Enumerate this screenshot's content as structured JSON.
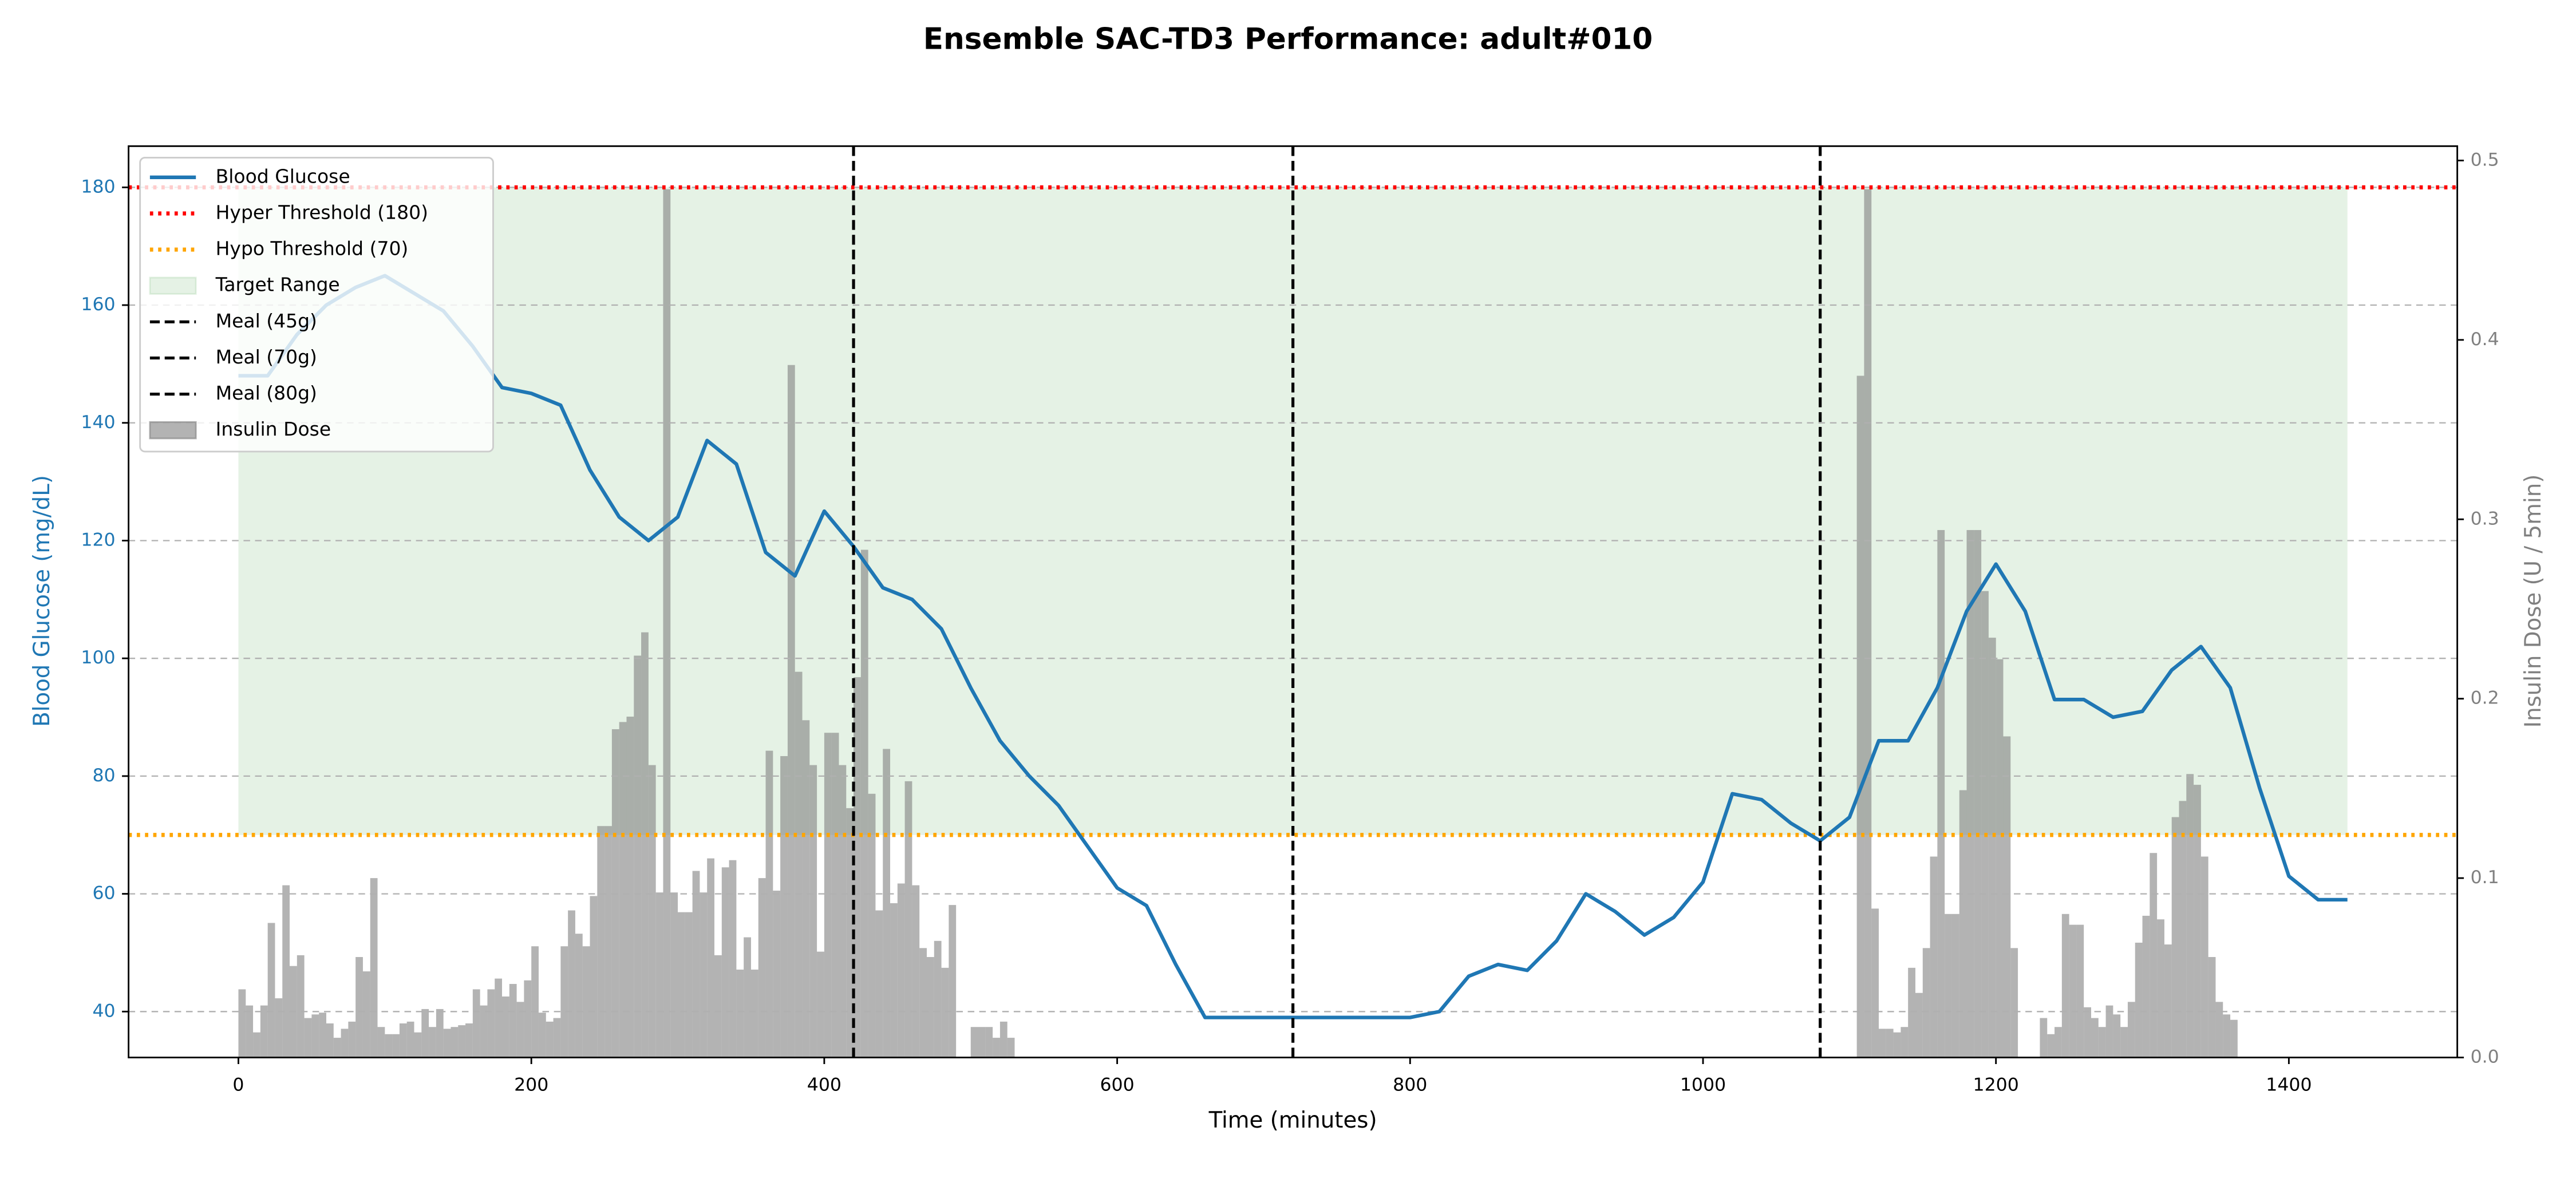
{
  "chart_data": {
    "type": "line",
    "title": "Ensemble SAC-TD3 Performance: adult#010",
    "x_label": "Time (minutes)",
    "y_label": "Blood Glucose (mg/dL)",
    "y2_label": "Insulin Dose (U / 5min)",
    "xlim": [
      -75,
      1515
    ],
    "xticks": [
      0,
      200,
      400,
      600,
      800,
      1000,
      1200,
      1400
    ],
    "ylim": [
      32.2,
      187
    ],
    "yticks": [
      40,
      60,
      80,
      100,
      120,
      140,
      160,
      180
    ],
    "y2lim": [
      0,
      0.508
    ],
    "y2ticks": [
      {
        "value": 0,
        "label": "0.0"
      },
      0.1,
      0.2,
      0.3,
      0.4,
      0.5
    ],
    "grid": "y",
    "legend": "upper left",
    "series": [
      {
        "name": "Blood Glucose",
        "type": "line",
        "color": "#1f77b4",
        "x": [
          0,
          20,
          40,
          60,
          80,
          100,
          120,
          140,
          160,
          180,
          200,
          220,
          240,
          260,
          280,
          300,
          320,
          340,
          360,
          380,
          400,
          420,
          440,
          460,
          480,
          500,
          520,
          540,
          560,
          580,
          600,
          620,
          640,
          660,
          680,
          700,
          720,
          740,
          760,
          780,
          800,
          820,
          840,
          860,
          880,
          900,
          920,
          940,
          960,
          980,
          1000,
          1020,
          1040,
          1060,
          1080,
          1100,
          1120,
          1140,
          1160,
          1180,
          1200,
          1220,
          1240,
          1260,
          1280,
          1300,
          1320,
          1340,
          1360,
          1380,
          1400,
          1420,
          1440
        ],
        "values": [
          148,
          148,
          155,
          160,
          163,
          165,
          162,
          159,
          153,
          146,
          145,
          143,
          132,
          124,
          120,
          124,
          137,
          133,
          118,
          114,
          125,
          119,
          112,
          110,
          105,
          95,
          86,
          80,
          75,
          68,
          61,
          58,
          48,
          39,
          39,
          39,
          39,
          39,
          39,
          39,
          39,
          40,
          46,
          48,
          47,
          52,
          60,
          57,
          53,
          56,
          62,
          77,
          76,
          72,
          69,
          73,
          86,
          86,
          95,
          108,
          116,
          108,
          93,
          93,
          90,
          91,
          98,
          102,
          95,
          78,
          63,
          59,
          59
        ]
      },
      {
        "name": "Insulin Dose",
        "type": "bar",
        "color": "gray",
        "alpha": 0.6,
        "axis": "y2",
        "x": [
          0,
          5,
          10,
          15,
          20,
          25,
          30,
          35,
          40,
          45,
          50,
          55,
          60,
          65,
          70,
          75,
          80,
          85,
          90,
          95,
          100,
          105,
          110,
          115,
          120,
          125,
          130,
          135,
          140,
          145,
          150,
          155,
          160,
          165,
          170,
          175,
          180,
          185,
          190,
          195,
          200,
          205,
          210,
          215,
          220,
          225,
          230,
          235,
          240,
          245,
          250,
          255,
          260,
          265,
          270,
          275,
          280,
          285,
          290,
          295,
          300,
          305,
          310,
          315,
          320,
          325,
          330,
          335,
          340,
          345,
          350,
          355,
          360,
          365,
          370,
          375,
          380,
          385,
          390,
          395,
          400,
          405,
          410,
          415,
          420,
          425,
          430,
          435,
          440,
          445,
          450,
          455,
          460,
          465,
          470,
          475,
          480,
          485,
          500,
          505,
          510,
          515,
          520,
          525,
          1105,
          1110,
          1115,
          1120,
          1125,
          1130,
          1135,
          1140,
          1145,
          1150,
          1155,
          1160,
          1165,
          1170,
          1175,
          1180,
          1185,
          1190,
          1195,
          1200,
          1205,
          1210,
          1230,
          1235,
          1240,
          1245,
          1250,
          1255,
          1260,
          1265,
          1270,
          1275,
          1280,
          1285,
          1290,
          1295,
          1300,
          1305,
          1310,
          1315,
          1320,
          1325,
          1330,
          1335,
          1340,
          1345,
          1350,
          1355,
          1360
        ],
        "values": [
          0.038,
          0.029,
          0.014,
          0.029,
          0.075,
          0.033,
          0.096,
          0.051,
          0.057,
          0.022,
          0.024,
          0.025,
          0.019,
          0.011,
          0.016,
          0.02,
          0.056,
          0.048,
          0.1,
          0.017,
          0.013,
          0.013,
          0.019,
          0.02,
          0.014,
          0.027,
          0.017,
          0.027,
          0.016,
          0.017,
          0.018,
          0.019,
          0.038,
          0.029,
          0.038,
          0.044,
          0.034,
          0.041,
          0.031,
          0.043,
          0.062,
          0.025,
          0.02,
          0.022,
          0.062,
          0.082,
          0.069,
          0.062,
          0.09,
          0.129,
          0.129,
          0.183,
          0.187,
          0.19,
          0.224,
          0.237,
          0.163,
          0.092,
          0.484,
          0.092,
          0.081,
          0.081,
          0.104,
          0.092,
          0.111,
          0.057,
          0.106,
          0.11,
          0.049,
          0.067,
          0.049,
          0.1,
          0.171,
          0.093,
          0.168,
          0.386,
          0.215,
          0.188,
          0.163,
          0.059,
          0.181,
          0.181,
          0.163,
          0.139,
          0.212,
          0.283,
          0.147,
          0.082,
          0.172,
          0.086,
          0.097,
          0.154,
          0.096,
          0.061,
          0.056,
          0.065,
          0.05,
          0.085,
          0.017,
          0.017,
          0.017,
          0.011,
          0.02,
          0.011,
          0.38,
          0.484,
          0.083,
          0.016,
          0.016,
          0.014,
          0.017,
          0.05,
          0.036,
          0.061,
          0.112,
          0.294,
          0.08,
          0.08,
          0.149,
          0.294,
          0.294,
          0.26,
          0.234,
          0.222,
          0.179,
          0.061,
          0.022,
          0.013,
          0.017,
          0.08,
          0.074,
          0.074,
          0.028,
          0.022,
          0.017,
          0.029,
          0.024,
          0.017,
          0.031,
          0.064,
          0.079,
          0.114,
          0.077,
          0.063,
          0.134,
          0.143,
          0.158,
          0.152,
          0.112,
          0.056,
          0.031,
          0.024,
          0.021
        ]
      }
    ],
    "hlines": [
      {
        "name": "Hyper Threshold (180)",
        "value": 180,
        "color": "red"
      },
      {
        "name": "Hypo Threshold (70)",
        "value": 70,
        "color": "orange"
      }
    ],
    "spans": [
      {
        "name": "Target Range",
        "x": [
          0,
          1440
        ],
        "values": [
          70,
          180
        ],
        "color": "green",
        "alpha": 0.1
      }
    ],
    "vlines": [
      {
        "name": "Meal (45g)",
        "x": 420,
        "color": "black"
      },
      {
        "name": "Meal (70g)",
        "x": 720,
        "color": "black"
      },
      {
        "name": "Meal (80g)",
        "x": 1080,
        "color": "black"
      }
    ]
  }
}
